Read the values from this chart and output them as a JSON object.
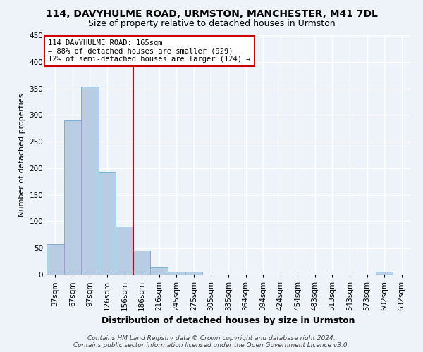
{
  "title1": "114, DAVYHULME ROAD, URMSTON, MANCHESTER, M41 7DL",
  "title2": "Size of property relative to detached houses in Urmston",
  "xlabel": "Distribution of detached houses by size in Urmston",
  "ylabel": "Number of detached properties",
  "footer1": "Contains HM Land Registry data © Crown copyright and database right 2024.",
  "footer2": "Contains public sector information licensed under the Open Government Licence v3.0.",
  "bar_labels": [
    "37sqm",
    "67sqm",
    "97sqm",
    "126sqm",
    "156sqm",
    "186sqm",
    "216sqm",
    "245sqm",
    "275sqm",
    "305sqm",
    "335sqm",
    "364sqm",
    "394sqm",
    "424sqm",
    "454sqm",
    "483sqm",
    "513sqm",
    "543sqm",
    "573sqm",
    "602sqm",
    "632sqm"
  ],
  "bar_values": [
    57,
    290,
    353,
    192,
    90,
    45,
    15,
    5,
    5,
    0,
    0,
    0,
    0,
    0,
    0,
    0,
    0,
    0,
    0,
    5,
    0
  ],
  "bar_color": "#b8cce4",
  "bar_edge_color": "#7ab0d4",
  "vline_x": 4.5,
  "vline_color": "#cc0000",
  "annotation_line1": "114 DAVYHULME ROAD: 165sqm",
  "annotation_line2": "← 88% of detached houses are smaller (929)",
  "annotation_line3": "12% of semi-detached houses are larger (124) →",
  "ylim": [
    0,
    450
  ],
  "yticks": [
    0,
    50,
    100,
    150,
    200,
    250,
    300,
    350,
    400,
    450
  ],
  "bg_color": "#eef2f9",
  "grid_color": "#ffffff",
  "title1_fontsize": 10,
  "title2_fontsize": 9,
  "xlabel_fontsize": 9,
  "ylabel_fontsize": 8,
  "tick_fontsize": 7.5,
  "footer_fontsize": 6.5
}
